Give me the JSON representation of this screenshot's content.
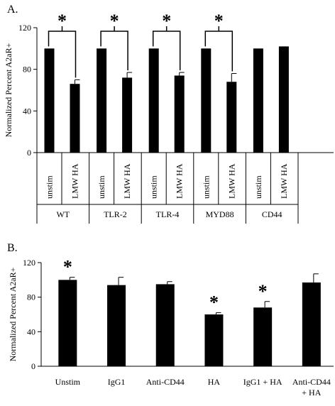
{
  "chart_data": [
    {
      "panel_label": "A.",
      "type": "bar",
      "ylabel": "Normalized Percent A2aR+",
      "ylim": [
        0,
        120
      ],
      "yticks": [
        "0",
        "40",
        "80",
        "120"
      ],
      "bar_color": "#000000",
      "groups": [
        {
          "name": "WT",
          "sub": [
            "unstim",
            "LMW HA"
          ],
          "values": [
            100,
            66
          ],
          "errors": [
            0,
            4
          ],
          "sig": "*"
        },
        {
          "name": "TLR-2",
          "sub": [
            "unstim",
            "LMW HA"
          ],
          "values": [
            100,
            72
          ],
          "errors": [
            0,
            5
          ],
          "sig": "*"
        },
        {
          "name": "TLR-4",
          "sub": [
            "unstim",
            "LMW HA"
          ],
          "values": [
            100,
            74
          ],
          "errors": [
            0,
            3
          ],
          "sig": "*"
        },
        {
          "name": "MYD88",
          "sub": [
            "unstim",
            "LMW HA"
          ],
          "values": [
            100,
            68
          ],
          "errors": [
            0,
            8
          ],
          "sig": "*"
        },
        {
          "name": "CD44",
          "sub": [
            "unstim",
            "LMW HA"
          ],
          "values": [
            100,
            102
          ],
          "errors": [
            0,
            0
          ],
          "sig": ""
        }
      ]
    },
    {
      "panel_label": "B.",
      "type": "bar",
      "ylabel": "Normalized Percent A2aR+",
      "ylim": [
        0,
        120
      ],
      "yticks": [
        "0",
        "40",
        "80",
        "120"
      ],
      "bar_color": "#000000",
      "categories": [
        "Unstim",
        "IgG1",
        "Anti-CD44",
        "HA",
        "IgG1 + HA",
        "Anti-CD44 + HA"
      ],
      "category_lines": [
        [
          "Unstim"
        ],
        [
          "IgG1"
        ],
        [
          "Anti-CD44"
        ],
        [
          "HA"
        ],
        [
          "IgG1 + HA"
        ],
        [
          "Anti-CD44",
          "+ HA"
        ]
      ],
      "values": [
        100,
        94,
        95,
        60,
        68,
        97
      ],
      "errors": [
        3,
        9,
        3,
        2,
        7,
        10
      ],
      "sig": [
        "*",
        "",
        "",
        "*",
        "*",
        ""
      ]
    }
  ]
}
